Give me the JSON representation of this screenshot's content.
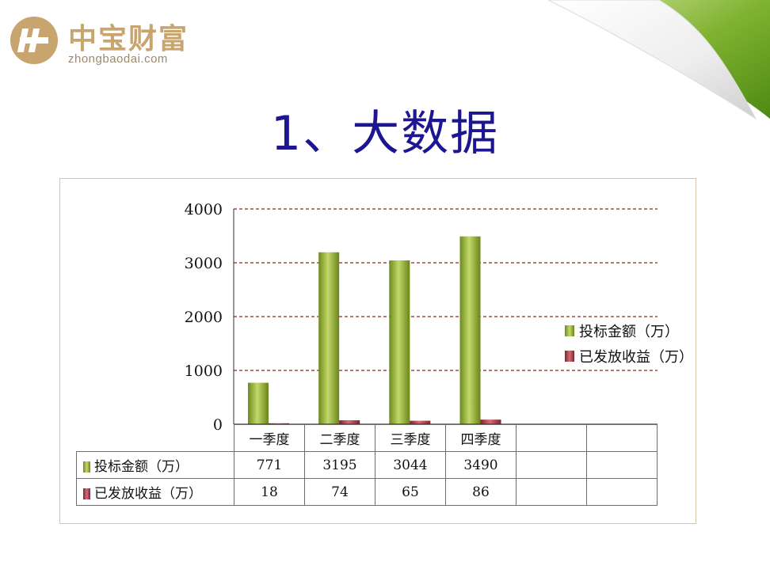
{
  "logo": {
    "name": "中宝财富",
    "domain": "zhongbaodai.com"
  },
  "title": "1、大数据",
  "colors": {
    "title": "#1c1690",
    "series1": "#8aa82c",
    "series2": "#a63a44",
    "grid": "#8b2a14"
  },
  "chart_data": {
    "type": "bar",
    "categories": [
      "一季度",
      "二季度",
      "三季度",
      "四季度",
      "",
      ""
    ],
    "series": [
      {
        "name": "投标金额（万）",
        "values": [
          771,
          3195,
          3044,
          3490,
          null,
          null
        ],
        "color": "#8aa82c"
      },
      {
        "name": "已发放收益（万）",
        "values": [
          18,
          74,
          65,
          86,
          null,
          null
        ],
        "color": "#a63a44"
      }
    ],
    "yticks": [
      0,
      1000,
      2000,
      3000,
      4000
    ],
    "ylim": [
      0,
      4000
    ],
    "grid": true,
    "legend": "right",
    "data_table": true
  }
}
